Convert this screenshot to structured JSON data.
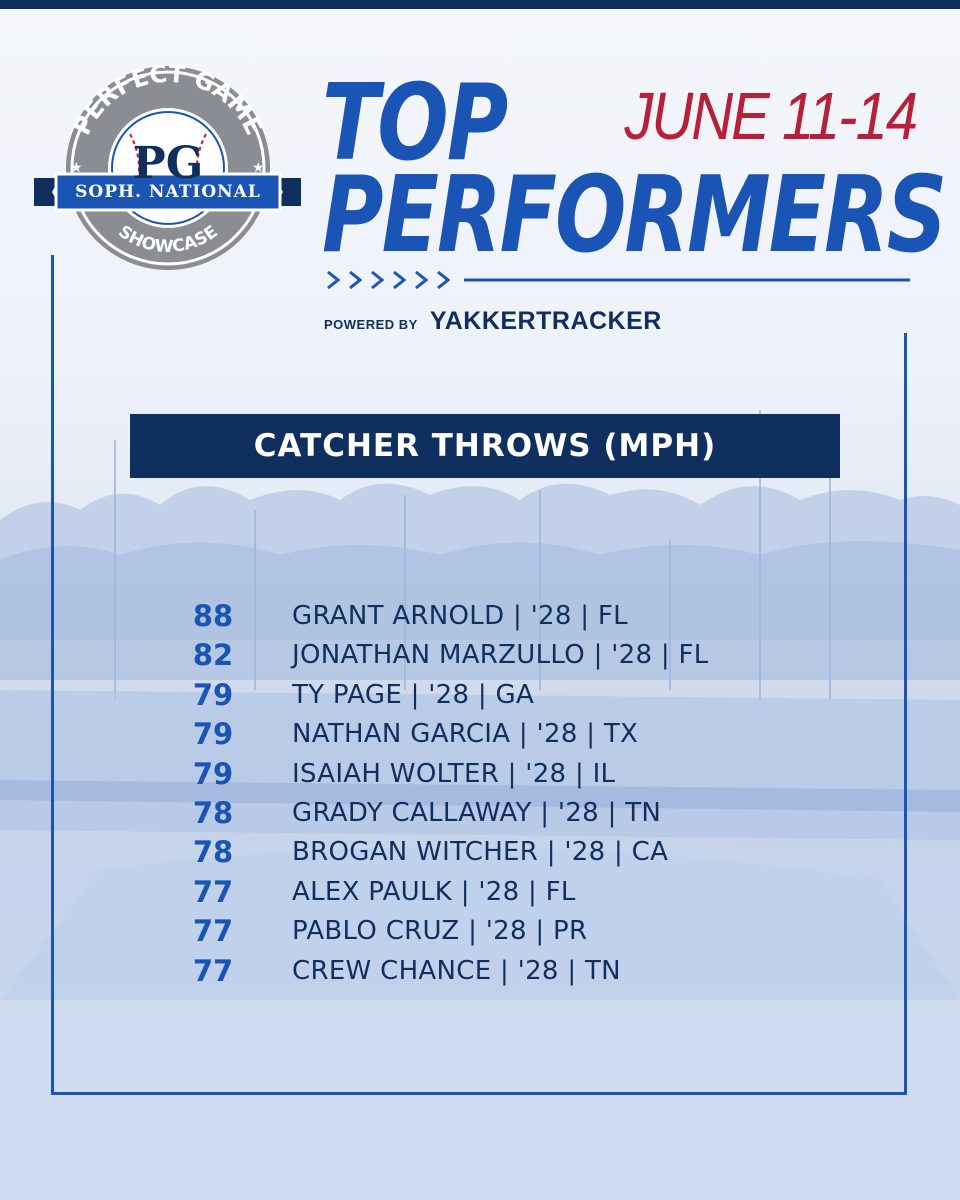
{
  "logo": {
    "arc_top": "PERFECT GAME",
    "monogram": "PG",
    "ribbon": "SOPH. NATIONAL",
    "arc_bottom": "SHOWCASE",
    "icon": "baseball-icon"
  },
  "header": {
    "title_line1": "TOP",
    "title_line2": "PERFORMERS",
    "date": "JUNE 11-14",
    "powered_by": "POWERED BY",
    "sponsor": "YAKKERTRACKER"
  },
  "banner": {
    "label": "CATCHER THROWS (MPH)"
  },
  "performers": [
    {
      "value": "88",
      "player": "GRANT ARNOLD | '28 | FL"
    },
    {
      "value": "82",
      "player": "JONATHAN MARZULLO | '28 | FL"
    },
    {
      "value": "79",
      "player": "TY PAGE | '28 | GA"
    },
    {
      "value": "79",
      "player": "NATHAN GARCIA | '28 | TX"
    },
    {
      "value": "79",
      "player": "ISAIAH WOLTER | '28 | IL"
    },
    {
      "value": "78",
      "player": "GRADY CALLAWAY | '28 | TN"
    },
    {
      "value": "78",
      "player": "BROGAN WITCHER | '28 | CA"
    },
    {
      "value": "77",
      "player": "ALEX PAULK | '28 | FL"
    },
    {
      "value": "77",
      "player": "PABLO CRUZ | '28 | PR"
    },
    {
      "value": "77",
      "player": "CREW CHANCE | '28 | TN"
    }
  ],
  "colors": {
    "navy": "#0f2f5e",
    "blue": "#1a55b6",
    "red": "#b8203a"
  }
}
